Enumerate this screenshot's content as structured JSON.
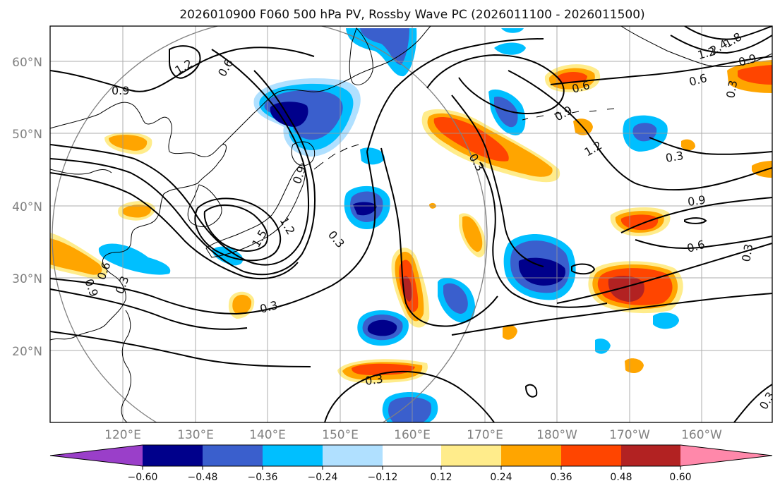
{
  "title": "2026010900 F060 500 hPa PV, Rossby Wave PC (2026011100 - 2026011500)",
  "axes": {
    "lat_labels": [
      "60°N",
      "50°N",
      "40°N",
      "30°N",
      "20°N"
    ],
    "lon_labels": [
      "120°E",
      "130°E",
      "140°E",
      "150°E",
      "160°E",
      "170°E",
      "180°W",
      "170°W",
      "160°W"
    ]
  },
  "colorbar": {
    "ticks": [
      "−0.60",
      "−0.48",
      "−0.36",
      "−0.24",
      "−0.12",
      "0.12",
      "0.24",
      "0.36",
      "0.48",
      "0.60"
    ],
    "colors": [
      "#9a3fc9",
      "#00008b",
      "#3a5fcd",
      "#00bfff",
      "#b0e0ff",
      "#ffffff",
      "#ffec8b",
      "#ffa500",
      "#ff4500",
      "#b22222",
      "#ff88aa"
    ]
  },
  "contour_labels": [
    "1.2",
    "0.9",
    "0.6",
    "0.9",
    "1.2",
    "1.5",
    "0.3",
    "0.3",
    "0.9",
    "0.6",
    "0.3",
    "0.9",
    "1.2",
    "0.3",
    "0.9",
    "0.6",
    "0.3",
    "0.6",
    "0.3",
    "0.3",
    "1.2",
    "0.9",
    "0.6",
    "2.4",
    "1.8",
    "0.3",
    "0.3"
  ],
  "colors": {
    "grid": "#9a9a9a",
    "coast": "#000000",
    "contour": "#000000",
    "circle": "#808080"
  }
}
